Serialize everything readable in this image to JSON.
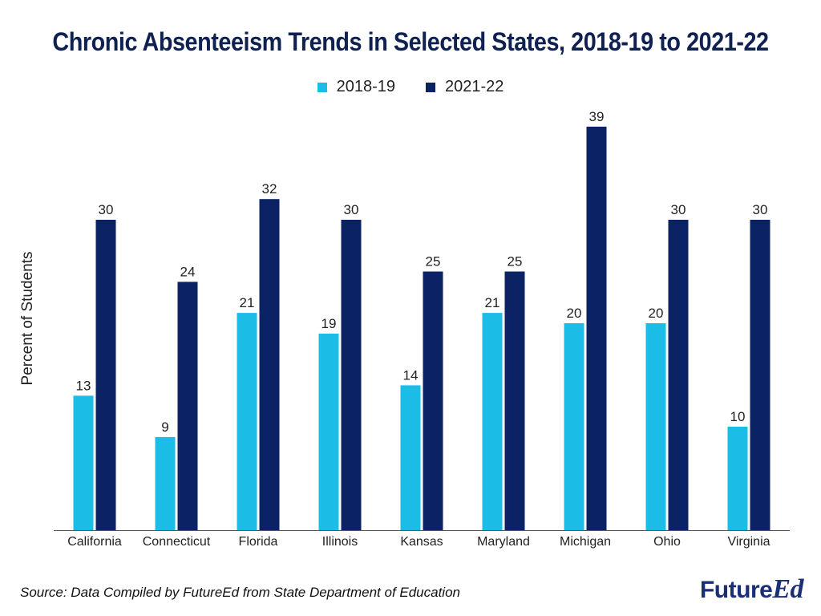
{
  "chart_data": {
    "type": "bar",
    "title": "Chronic Absenteeism Trends in Selected States, 2018-19 to 2021-22",
    "ylabel": "Percent of Students",
    "xlabel": "",
    "ylim": [
      0,
      40
    ],
    "grid": false,
    "legend_position": "top-center",
    "categories": [
      "California",
      "Connecticut",
      "Florida",
      "Illinois",
      "Kansas",
      "Maryland",
      "Michigan",
      "Ohio",
      "Virginia"
    ],
    "series": [
      {
        "name": "2018-19",
        "color": "#1bbde6",
        "values": [
          13,
          9,
          21,
          19,
          14,
          21,
          20,
          20,
          10
        ]
      },
      {
        "name": "2021-22",
        "color": "#0b2265",
        "values": [
          30,
          24,
          32,
          30,
          25,
          25,
          39,
          30,
          30
        ]
      }
    ]
  },
  "footer": {
    "source": "Source: Data Compiled by FutureEd from State Department of Education",
    "logo_main": "Future",
    "logo_accent": "Ed"
  }
}
